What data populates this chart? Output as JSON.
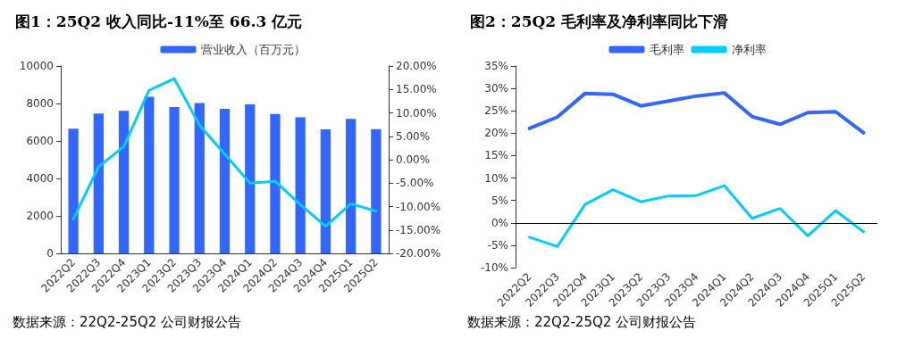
{
  "chart_data": [
    {
      "type": "bar",
      "title": "图1：25Q2 收入同比-11%至 66.3 亿元",
      "annotations": [
        "数据来源：22Q2-25Q2 公司财报公告"
      ],
      "categories": [
        "2022Q2",
        "2022Q3",
        "2022Q4",
        "2023Q1",
        "2023Q2",
        "2023Q3",
        "2023Q4",
        "2024Q1",
        "2024Q2",
        "2024Q3",
        "2024Q4",
        "2025Q1",
        "2025Q2"
      ],
      "series": [
        {
          "name": "营业收入（百万元）",
          "color": "#3366ff",
          "values": [
            6660,
            7470,
            7610,
            8360,
            7810,
            8020,
            7720,
            7950,
            7440,
            7260,
            6620,
            7180,
            6630
          ]
        },
        {
          "type": "line",
          "axis": "y2",
          "color": "#00ccff",
          "values": [
            -12.7,
            -1.5,
            2.8,
            14.8,
            17.3,
            7.4,
            1.2,
            -5.0,
            -4.6,
            -9.6,
            -14.2,
            -9.4,
            -11.0
          ]
        }
      ],
      "ylim": [
        0,
        10000
      ],
      "yticks": [
        0,
        2000,
        4000,
        6000,
        8000,
        10000
      ],
      "y2lim": [
        -20,
        20
      ],
      "y2ticks": [
        {
          "value": -20,
          "label": "-20.00%"
        },
        {
          "value": -15,
          "label": "-15.00%"
        },
        {
          "value": -10,
          "label": "-10.00%"
        },
        {
          "value": -5,
          "label": "-5.00%"
        },
        {
          "value": 0,
          "label": "0.00%"
        },
        {
          "value": 5,
          "label": "5.00%"
        },
        {
          "value": 10,
          "label": "10.00%"
        },
        {
          "value": 15,
          "label": "15.00%"
        },
        {
          "value": 20,
          "label": "20.00%"
        }
      ],
      "legend": "top",
      "grid": false
    },
    {
      "type": "line",
      "title": "图2：25Q2 毛利率及净利率同比下滑",
      "annotations": [
        "数据来源：22Q2-25Q2 公司财报公告"
      ],
      "categories": [
        "2022Q2",
        "2022Q3",
        "2022Q4",
        "2023Q1",
        "2023Q2",
        "2023Q3",
        "2023Q4",
        "2024Q1",
        "2024Q2",
        "2024Q3",
        "2024Q4",
        "2025Q1",
        "2025Q2"
      ],
      "series": [
        {
          "name": "毛利率",
          "color": "#3366ff",
          "values": [
            21.1,
            23.6,
            28.9,
            28.7,
            26.1,
            27.2,
            28.3,
            29.0,
            23.7,
            22.0,
            24.6,
            24.8,
            20.1
          ]
        },
        {
          "name": "净利率",
          "color": "#00ccff",
          "values": [
            -3.2,
            -5.3,
            4.1,
            7.4,
            4.7,
            6.0,
            6.1,
            8.3,
            1.0,
            3.2,
            -2.9,
            2.7,
            -2.0
          ]
        }
      ],
      "ref_lines": [
        {
          "axis": "y",
          "value": 0,
          "color": "#000000"
        }
      ],
      "ylim": [
        -10,
        35
      ],
      "yticks": [
        {
          "value": -10,
          "label": "-10%"
        },
        {
          "value": -5,
          "label": "-5%"
        },
        {
          "value": 0,
          "label": "0%"
        },
        {
          "value": 5,
          "label": "5%"
        },
        {
          "value": 10,
          "label": "10%"
        },
        {
          "value": 15,
          "label": "15%"
        },
        {
          "value": 20,
          "label": "20%"
        },
        {
          "value": 25,
          "label": "25%"
        },
        {
          "value": 30,
          "label": "30%"
        },
        {
          "value": 35,
          "label": "35%"
        }
      ],
      "legend": "top",
      "grid": false
    }
  ]
}
